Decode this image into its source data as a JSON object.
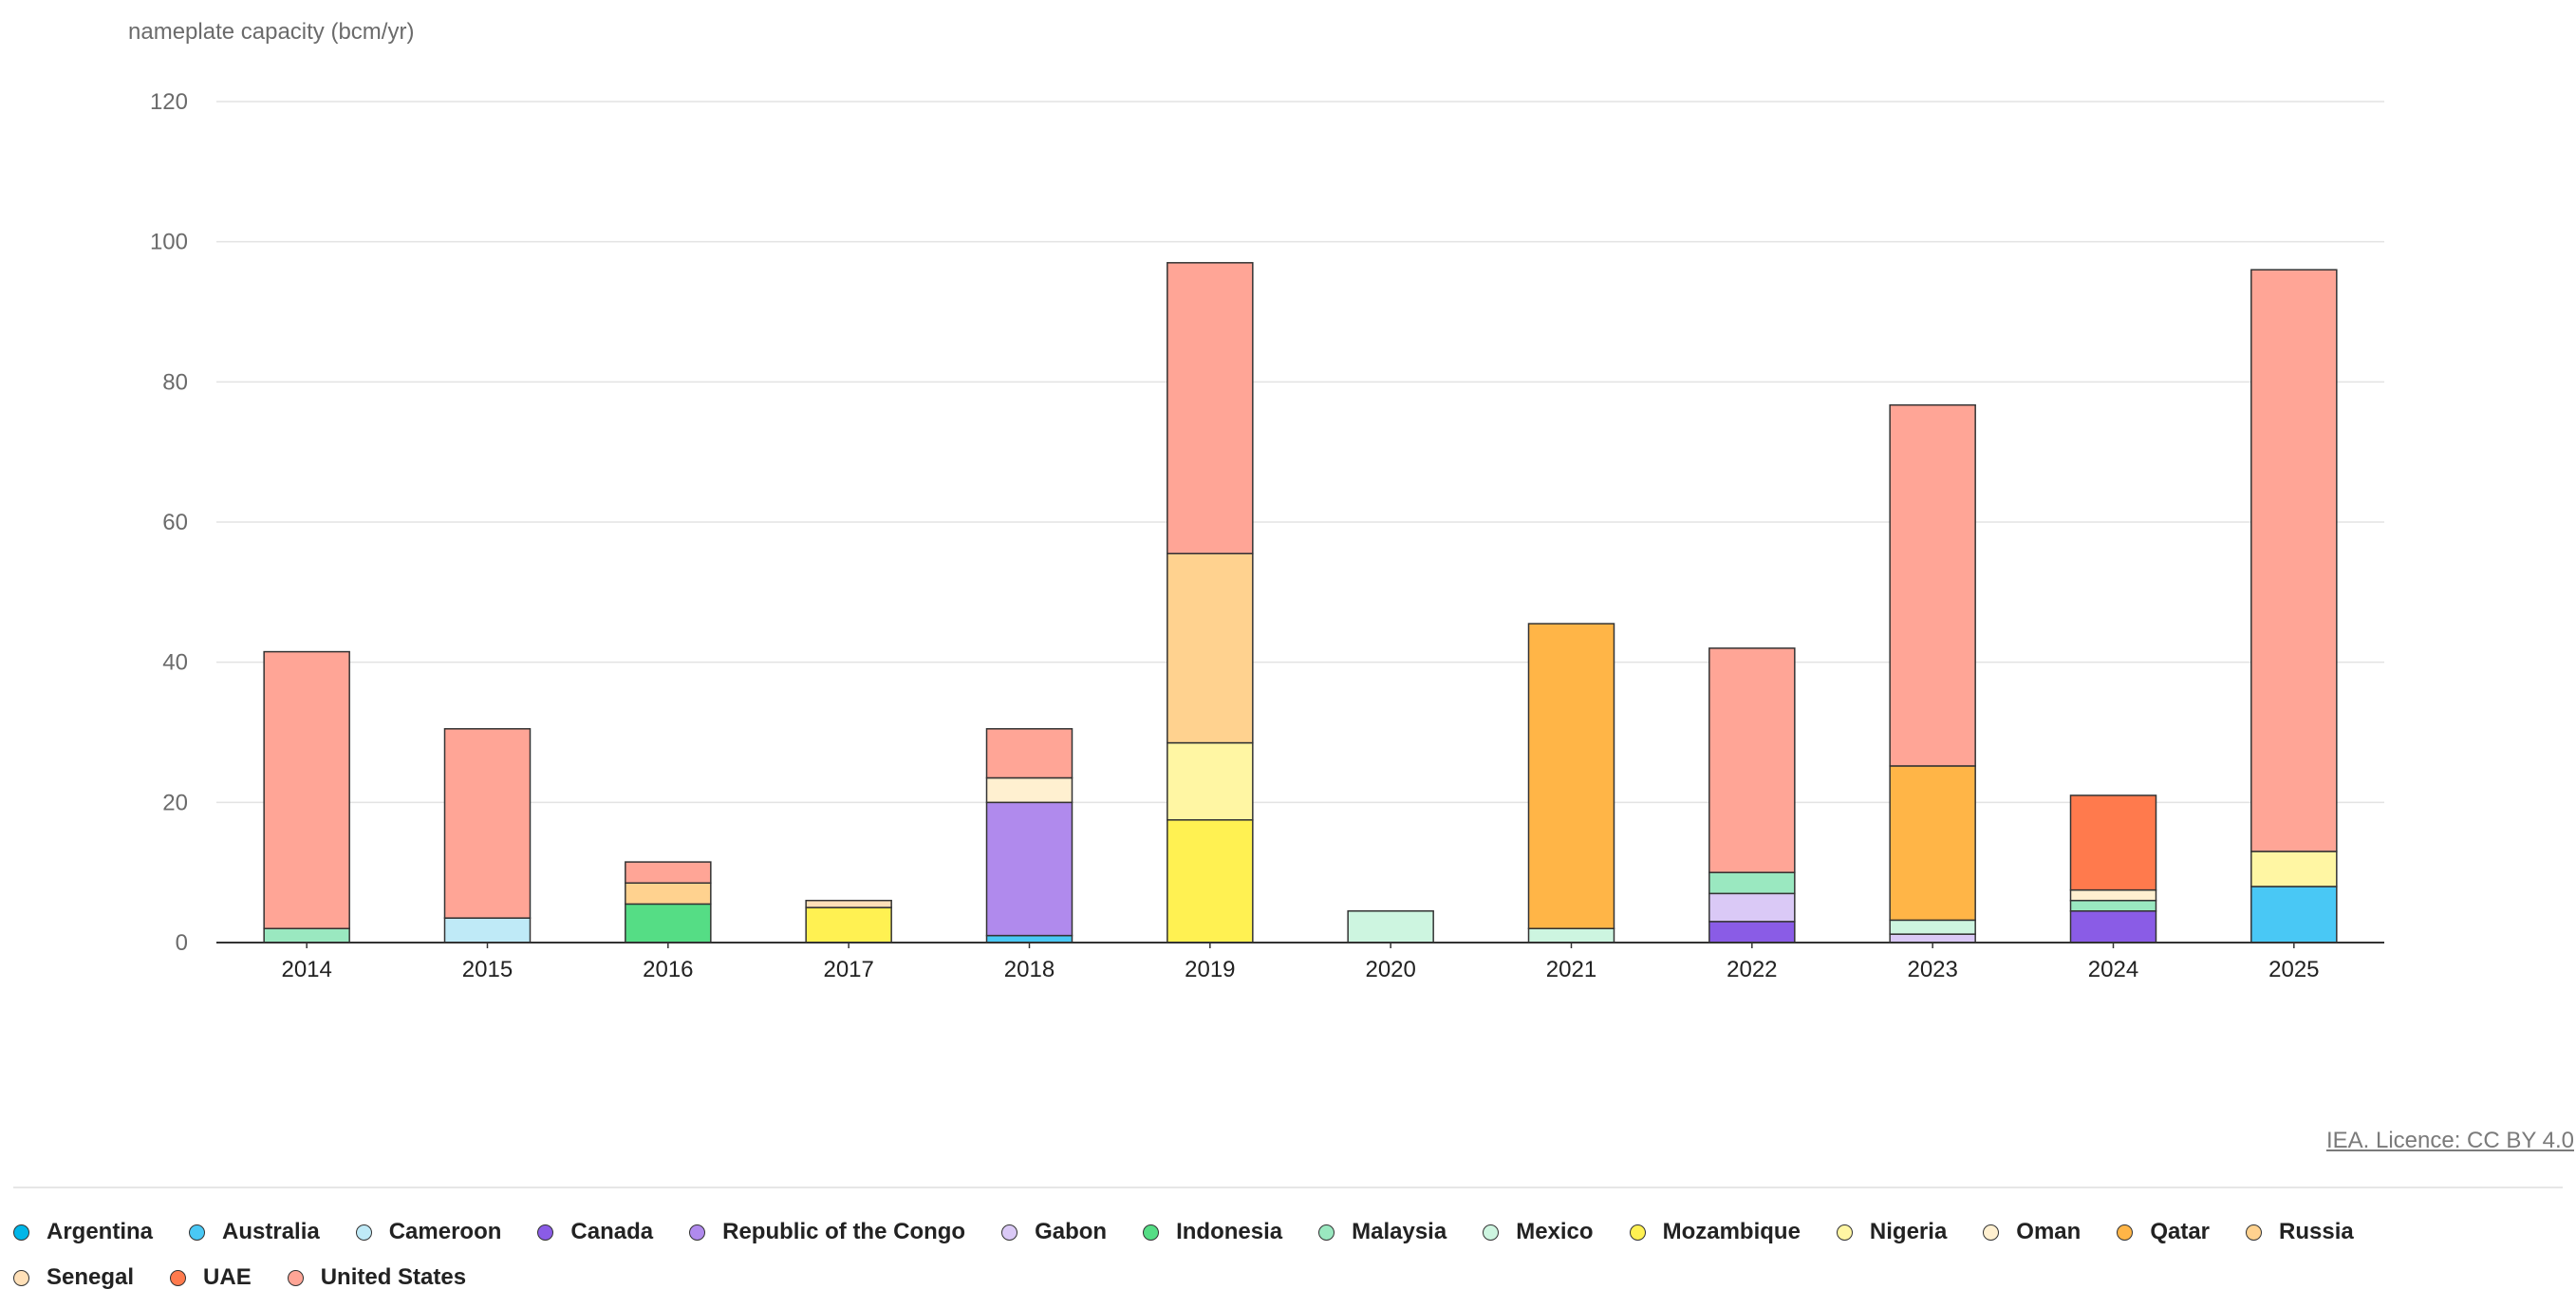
{
  "chart_data": {
    "type": "bar",
    "stacked": true,
    "ylabel": "nameplate capacity (bcm/yr)",
    "ylim": [
      0,
      120
    ],
    "yticks": [
      0,
      20,
      40,
      60,
      80,
      100,
      120
    ],
    "categories": [
      "2014",
      "2015",
      "2016",
      "2017",
      "2018",
      "2019",
      "2020",
      "2021",
      "2022",
      "2023",
      "2024",
      "2025"
    ],
    "series": [
      {
        "name": "Argentina",
        "color": "#00b6e8",
        "values": [
          0,
          0,
          0,
          0,
          0,
          0,
          0,
          0,
          0,
          0,
          0,
          0
        ]
      },
      {
        "name": "Australia",
        "color": "#49c8f5",
        "values": [
          0,
          0,
          0,
          0,
          1,
          0,
          0,
          0,
          0,
          0,
          0,
          8
        ]
      },
      {
        "name": "Cameroon",
        "color": "#bfeaf7",
        "values": [
          0,
          3.5,
          0,
          0,
          0,
          0,
          0,
          0,
          0,
          0,
          0,
          0
        ]
      },
      {
        "name": "Canada",
        "color": "#8a5ce6",
        "values": [
          0,
          0,
          0,
          0,
          0,
          0,
          0,
          0,
          3,
          0,
          4.5,
          0
        ]
      },
      {
        "name": "Republic of the Congo",
        "color": "#b08aed",
        "values": [
          0,
          0,
          0,
          0,
          19,
          0,
          0,
          0,
          0,
          0,
          0,
          0
        ]
      },
      {
        "name": "Gabon",
        "color": "#dac9f6",
        "values": [
          0,
          0,
          0,
          0,
          0,
          0,
          0,
          0,
          4,
          1.2,
          0,
          0
        ]
      },
      {
        "name": "Indonesia",
        "color": "#55dd85",
        "values": [
          0,
          0,
          5.5,
          0,
          0,
          0,
          0,
          0,
          0,
          0,
          0,
          0
        ]
      },
      {
        "name": "Malaysia",
        "color": "#9ae8c0",
        "values": [
          2,
          0,
          0,
          0,
          0,
          0,
          0,
          0,
          3,
          0,
          1.5,
          0
        ]
      },
      {
        "name": "Mexico",
        "color": "#cdf5e0",
        "values": [
          0,
          0,
          0,
          0,
          0,
          0,
          4.5,
          2,
          0,
          2,
          0,
          0
        ]
      },
      {
        "name": "Mozambique",
        "color": "#fff152",
        "values": [
          0,
          0,
          0,
          5,
          0,
          17.5,
          0,
          0,
          0,
          0,
          0,
          0
        ]
      },
      {
        "name": "Nigeria",
        "color": "#fff6a3",
        "values": [
          0,
          0,
          0,
          0,
          0,
          11,
          0,
          0,
          0,
          0,
          0,
          5
        ]
      },
      {
        "name": "Oman",
        "color": "#fff0d0",
        "values": [
          0,
          0,
          0,
          0,
          3.5,
          0,
          0,
          0,
          0,
          0,
          1.5,
          0
        ]
      },
      {
        "name": "Qatar",
        "color": "#ffb547",
        "values": [
          0,
          0,
          0,
          0,
          0,
          0,
          0,
          43.5,
          0,
          22,
          0,
          0
        ]
      },
      {
        "name": "Russia",
        "color": "#ffd28f",
        "values": [
          0,
          0,
          3,
          0,
          0,
          27,
          0,
          0,
          0,
          0,
          0,
          0
        ]
      },
      {
        "name": "Senegal",
        "color": "#ffe0b8",
        "values": [
          0,
          0,
          0,
          1,
          0,
          0,
          0,
          0,
          0,
          0,
          0,
          0
        ]
      },
      {
        "name": "UAE",
        "color": "#ff7a4d",
        "values": [
          0,
          0,
          0,
          0,
          0,
          0,
          0,
          0,
          0,
          0,
          13.5,
          0
        ]
      },
      {
        "name": "United States",
        "color": "#ffa596",
        "values": [
          39.5,
          27,
          3,
          0,
          7,
          41.5,
          0,
          0,
          32,
          51.5,
          0,
          83
        ]
      }
    ]
  },
  "credit": "IEA. Licence: CC BY 4.0"
}
